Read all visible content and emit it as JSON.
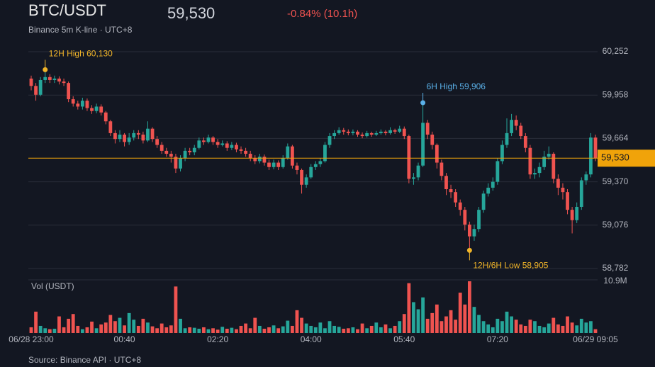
{
  "chart_data": {
    "type": "candlestick",
    "title": "BTC/USDT",
    "subtitle": "Binance 5m K-line · UTC+8",
    "change": "-0.84% (10.1h)",
    "source": "Source: Binance API · UTC+8",
    "volume_label": "Vol (USDT)",
    "up_color": "#26a69a",
    "down_color": "#ef5350",
    "grid": true,
    "last_price": {
      "value": 59530,
      "label": "59,530"
    },
    "ylim": [
      58782,
      60252
    ],
    "yticks": [
      {
        "value": 60252,
        "label": "60,252"
      },
      {
        "value": 59958,
        "label": "59,958"
      },
      {
        "value": 59664,
        "label": "59,664"
      },
      {
        "value": 59370,
        "label": "59,370"
      },
      {
        "value": 59076,
        "label": "59,076"
      },
      {
        "value": 58782,
        "label": "58,782"
      }
    ],
    "vol_ylim": [
      0,
      10900000
    ],
    "vol_yticks": [
      {
        "value": 10900000,
        "label": "10.9M"
      }
    ],
    "annotations": [
      {
        "text": "12H High 60,130",
        "value": 60130,
        "color": "#f0b429"
      },
      {
        "text": "6H High 59,906",
        "value": 59906,
        "color": "#5ab0e8"
      },
      {
        "text": "12H/6H Low 58,905",
        "value": 58905,
        "color": "#f0b429"
      }
    ],
    "categories": [
      "06/28 23:00",
      null,
      null,
      null,
      null,
      null,
      null,
      null,
      null,
      null,
      null,
      null,
      null,
      null,
      null,
      null,
      null,
      null,
      null,
      null,
      "00:40",
      null,
      null,
      null,
      null,
      null,
      null,
      null,
      null,
      null,
      null,
      null,
      null,
      null,
      null,
      null,
      null,
      null,
      null,
      null,
      "02:20",
      null,
      null,
      null,
      null,
      null,
      null,
      null,
      null,
      null,
      null,
      null,
      null,
      null,
      null,
      null,
      null,
      null,
      null,
      null,
      "04:00",
      null,
      null,
      null,
      null,
      null,
      null,
      null,
      null,
      null,
      null,
      null,
      null,
      null,
      null,
      null,
      null,
      null,
      null,
      null,
      "05:40",
      null,
      null,
      null,
      null,
      null,
      null,
      null,
      null,
      null,
      null,
      null,
      null,
      null,
      null,
      null,
      null,
      null,
      null,
      null,
      "07:20",
      null,
      null,
      null,
      null,
      null,
      null,
      null,
      null,
      null,
      null,
      null,
      null,
      null,
      null,
      null,
      null,
      null,
      null,
      null,
      null,
      "06/29 09:05"
    ],
    "open": [
      60070,
      60020,
      59960,
      60060,
      60080,
      60060,
      60070,
      60050,
      60040,
      59930,
      59900,
      59880,
      59920,
      59870,
      59850,
      59880,
      59840,
      59780,
      59700,
      59660,
      59690,
      59640,
      59670,
      59700,
      59690,
      59650,
      59730,
      59660,
      59620,
      59580,
      59560,
      59540,
      59460,
      59530,
      59580,
      59570,
      59600,
      59650,
      59640,
      59670,
      59640,
      59620,
      59630,
      59600,
      59620,
      59590,
      59580,
      59560,
      59530,
      59510,
      59540,
      59500,
      59470,
      59500,
      59470,
      59530,
      59610,
      59480,
      59450,
      59350,
      59400,
      59470,
      59490,
      59510,
      59620,
      59680,
      59700,
      59720,
      59710,
      59700,
      59710,
      59690,
      59680,
      59700,
      59690,
      59700,
      59710,
      59700,
      59720,
      59710,
      59730,
      59680,
      59390,
      59400,
      59480,
      59770,
      59690,
      59620,
      59500,
      59410,
      59320,
      59300,
      59230,
      59180,
      59080,
      59000,
      59050,
      59180,
      59290,
      59330,
      59370,
      59510,
      59620,
      59700,
      59790,
      59750,
      59680,
      59600,
      59420,
      59430,
      59470,
      59540,
      59560,
      59390,
      59330,
      59300,
      59180,
      59110,
      59200,
      59380,
      59420,
      59670
    ],
    "high": [
      60090,
      60040,
      60080,
      60130,
      60100,
      60090,
      60085,
      60070,
      60050,
      59950,
      59920,
      59940,
      59935,
      59890,
      59900,
      59895,
      59850,
      59790,
      59720,
      59720,
      59700,
      59700,
      59720,
      59720,
      59710,
      59780,
      59740,
      59680,
      59640,
      59600,
      59580,
      59560,
      59550,
      59600,
      59600,
      59620,
      59670,
      59670,
      59690,
      59680,
      59660,
      59650,
      59645,
      59640,
      59635,
      59610,
      59600,
      59580,
      59550,
      59560,
      59555,
      59520,
      59520,
      59515,
      59550,
      59630,
      59620,
      59500,
      59460,
      59420,
      59490,
      59510,
      59530,
      59640,
      59700,
      59720,
      59740,
      59735,
      59725,
      59725,
      59720,
      59705,
      59715,
      59710,
      59715,
      59725,
      59720,
      59740,
      59730,
      59750,
      59745,
      59690,
      59430,
      59500,
      59906,
      59790,
      59710,
      59630,
      59520,
      59430,
      59350,
      59320,
      59250,
      59200,
      59100,
      59080,
      59200,
      59310,
      59360,
      59400,
      59530,
      59650,
      59800,
      59830,
      59820,
      59770,
      59700,
      59620,
      59460,
      59500,
      59580,
      59610,
      59570,
      59420,
      59360,
      59320,
      59200,
      59230,
      59400,
      59440,
      59700,
      59690
    ],
    "low": [
      59990,
      59920,
      59950,
      60040,
      60040,
      60040,
      60030,
      60020,
      59910,
      59880,
      59860,
      59860,
      59850,
      59830,
      59835,
      59820,
      59760,
      59680,
      59630,
      59640,
      59610,
      59620,
      59650,
      59660,
      59630,
      59640,
      59640,
      59600,
      59560,
      59540,
      59500,
      59430,
      59440,
      59510,
      59550,
      59550,
      59590,
      59620,
      59630,
      59620,
      59600,
      59610,
      59580,
      59585,
      59570,
      59560,
      59540,
      59510,
      59490,
      59495,
      59480,
      59450,
      59455,
      59450,
      59460,
      59520,
      59460,
      59420,
      59290,
      59330,
      59390,
      59450,
      59470,
      59500,
      59600,
      59660,
      59690,
      59690,
      59685,
      59685,
      59675,
      59665,
      59670,
      59675,
      59680,
      59690,
      59685,
      59690,
      59695,
      59700,
      59660,
      59360,
      59350,
      59380,
      59470,
      59660,
      59590,
      59460,
      59380,
      59280,
      59260,
      59200,
      59140,
      59040,
      58905,
      58970,
      59030,
      59160,
      59270,
      59310,
      59350,
      59490,
      59600,
      59680,
      59720,
      59660,
      59570,
      59390,
      59390,
      59400,
      59450,
      59520,
      59360,
      59280,
      59250,
      59150,
      59020,
      59090,
      59180,
      59350,
      59400,
      59510
    ],
    "close": [
      60020,
      59960,
      60060,
      60080,
      60060,
      60070,
      60050,
      60040,
      59930,
      59900,
      59880,
      59920,
      59870,
      59850,
      59880,
      59840,
      59780,
      59700,
      59660,
      59690,
      59640,
      59670,
      59700,
      59690,
      59650,
      59730,
      59660,
      59620,
      59580,
      59560,
      59540,
      59460,
      59530,
      59580,
      59570,
      59600,
      59650,
      59640,
      59670,
      59640,
      59620,
      59630,
      59600,
      59620,
      59590,
      59580,
      59560,
      59530,
      59510,
      59540,
      59500,
      59470,
      59500,
      59470,
      59530,
      59610,
      59480,
      59450,
      59350,
      59400,
      59470,
      59490,
      59510,
      59620,
      59680,
      59700,
      59720,
      59710,
      59700,
      59710,
      59690,
      59680,
      59700,
      59690,
      59700,
      59710,
      59700,
      59720,
      59710,
      59730,
      59680,
      59390,
      59400,
      59480,
      59770,
      59690,
      59620,
      59500,
      59410,
      59320,
      59300,
      59230,
      59180,
      59080,
      59000,
      59050,
      59180,
      59290,
      59330,
      59370,
      59510,
      59620,
      59700,
      59790,
      59750,
      59680,
      59600,
      59420,
      59430,
      59470,
      59540,
      59560,
      59390,
      59330,
      59300,
      59180,
      59110,
      59200,
      59380,
      59420,
      59670,
      59530
    ],
    "volume": [
      1200000,
      4500000,
      1500000,
      1000000,
      800000,
      900000,
      3500000,
      1200000,
      3000000,
      4000000,
      1500000,
      800000,
      1200000,
      2400000,
      1000000,
      1800000,
      2200000,
      3800000,
      2500000,
      3200000,
      1600000,
      4200000,
      2800000,
      1500000,
      3000000,
      2200000,
      1400000,
      1000000,
      2000000,
      1200000,
      1600000,
      9800000,
      3000000,
      1000000,
      1200000,
      1100000,
      900000,
      1200000,
      800000,
      1000000,
      700000,
      1300000,
      900000,
      1100000,
      800000,
      1500000,
      2000000,
      1000000,
      3200000,
      1500000,
      900000,
      1200000,
      1600000,
      1000000,
      1400000,
      2600000,
      1500000,
      4800000,
      3200000,
      2000000,
      1500000,
      1200000,
      2200000,
      1000000,
      2500000,
      1500000,
      1300000,
      900000,
      1000000,
      1200000,
      800000,
      2000000,
      1000000,
      1500000,
      2200000,
      1200000,
      1800000,
      1000000,
      1500000,
      2500000,
      4000000,
      10500000,
      6500000,
      5000000,
      7500000,
      3000000,
      4200000,
      6000000,
      2500000,
      3500000,
      4800000,
      2800000,
      8500000,
      6000000,
      10900000,
      5500000,
      3800000,
      2500000,
      1800000,
      1200000,
      3000000,
      2500000,
      4500000,
      3500000,
      2800000,
      1800000,
      1500000,
      2800000,
      2500000,
      1500000,
      1200000,
      2000000,
      3200000,
      1800000,
      1500000,
      3500000,
      2200000,
      1600000,
      3000000,
      2200000,
      2500000,
      800000
    ]
  }
}
